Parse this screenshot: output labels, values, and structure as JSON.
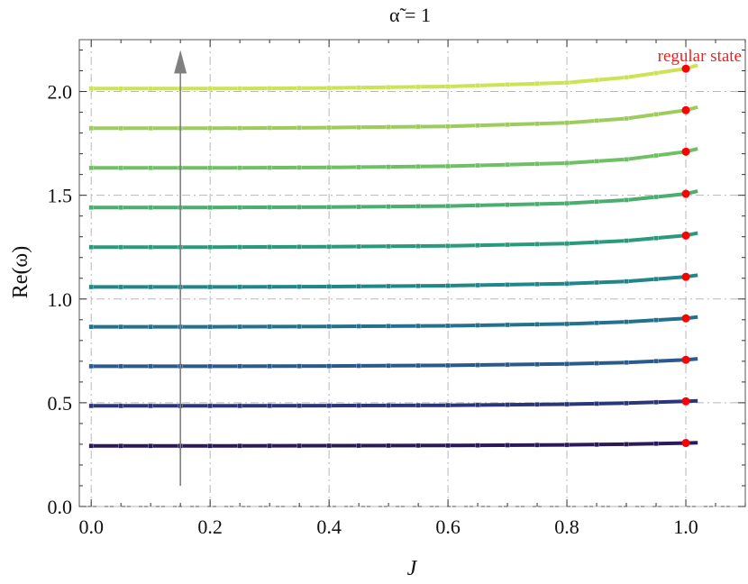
{
  "chart_data": {
    "type": "line",
    "title": "α̃ = 1",
    "xlabel": "J",
    "ylabel": "Re(ω)",
    "xlim": [
      -0.02,
      1.1
    ],
    "ylim": [
      0.0,
      2.25
    ],
    "x_ticks": [
      0.0,
      0.2,
      0.4,
      0.6,
      0.8,
      1.0
    ],
    "y_ticks": [
      0.0,
      0.5,
      1.0,
      1.5,
      2.0
    ],
    "x_tick_labels": [
      "0.0",
      "0.2",
      "0.4",
      "0.6",
      "0.8",
      "1.0"
    ],
    "y_tick_labels": [
      "0.0",
      "0.5",
      "1.0",
      "1.5",
      "2.0"
    ],
    "grid": true,
    "annotation": {
      "text": "regular state",
      "color": "#ff0000"
    },
    "arrow": {
      "x": 0.15,
      "y_from": 0.1,
      "y_to": 2.2,
      "color": "#808080"
    },
    "series": [
      {
        "color": "#2b1a5a",
        "x": [
          0.0,
          0.2,
          0.4,
          0.6,
          0.8,
          0.9,
          1.0,
          1.02
        ],
        "values": [
          0.292,
          0.292,
          0.293,
          0.294,
          0.297,
          0.3,
          0.306,
          0.307
        ]
      },
      {
        "color": "#2a3679",
        "x": [
          0.0,
          0.2,
          0.4,
          0.6,
          0.8,
          0.9,
          1.0,
          1.02
        ],
        "values": [
          0.485,
          0.485,
          0.486,
          0.488,
          0.493,
          0.498,
          0.507,
          0.509
        ]
      },
      {
        "color": "#285a8c",
        "x": [
          0.0,
          0.2,
          0.4,
          0.6,
          0.8,
          0.9,
          1.0,
          1.02
        ],
        "values": [
          0.676,
          0.676,
          0.677,
          0.68,
          0.687,
          0.694,
          0.707,
          0.712
        ]
      },
      {
        "color": "#23718e",
        "x": [
          0.0,
          0.2,
          0.4,
          0.6,
          0.8,
          0.9,
          1.0,
          1.02
        ],
        "values": [
          0.866,
          0.866,
          0.868,
          0.871,
          0.88,
          0.89,
          0.907,
          0.913
        ]
      },
      {
        "color": "#1f868a",
        "x": [
          0.0,
          0.2,
          0.4,
          0.6,
          0.8,
          0.9,
          1.0,
          1.02
        ],
        "values": [
          1.058,
          1.058,
          1.06,
          1.064,
          1.074,
          1.085,
          1.107,
          1.115
        ]
      },
      {
        "color": "#2a9a7d",
        "x": [
          0.0,
          0.2,
          0.4,
          0.6,
          0.8,
          0.9,
          1.0,
          1.02
        ],
        "values": [
          1.25,
          1.25,
          1.252,
          1.256,
          1.267,
          1.281,
          1.306,
          1.318
        ]
      },
      {
        "color": "#4aae6f",
        "x": [
          0.0,
          0.2,
          0.4,
          0.6,
          0.8,
          0.9,
          1.0,
          1.02
        ],
        "values": [
          1.441,
          1.441,
          1.443,
          1.448,
          1.461,
          1.477,
          1.507,
          1.52
        ]
      },
      {
        "color": "#6fc065",
        "x": [
          0.0,
          0.2,
          0.4,
          0.6,
          0.8,
          0.9,
          1.0,
          1.02
        ],
        "values": [
          1.632,
          1.632,
          1.634,
          1.64,
          1.655,
          1.673,
          1.71,
          1.724
        ]
      },
      {
        "color": "#9ccc5c",
        "x": [
          0.0,
          0.2,
          0.4,
          0.6,
          0.8,
          0.9,
          1.0,
          1.02
        ],
        "values": [
          1.823,
          1.823,
          1.826,
          1.832,
          1.849,
          1.87,
          1.91,
          1.925
        ]
      },
      {
        "color": "#cde255",
        "x": [
          0.0,
          0.2,
          0.4,
          0.6,
          0.8,
          0.9,
          1.0,
          1.02
        ],
        "values": [
          2.014,
          2.014,
          2.017,
          2.024,
          2.043,
          2.068,
          2.11,
          2.127
        ]
      }
    ],
    "regular_state_points": {
      "x": 1.0,
      "values": [
        0.306,
        0.507,
        0.707,
        0.907,
        1.107,
        1.306,
        1.507,
        1.71,
        1.91,
        2.11
      ],
      "color": "#ff0000"
    }
  }
}
